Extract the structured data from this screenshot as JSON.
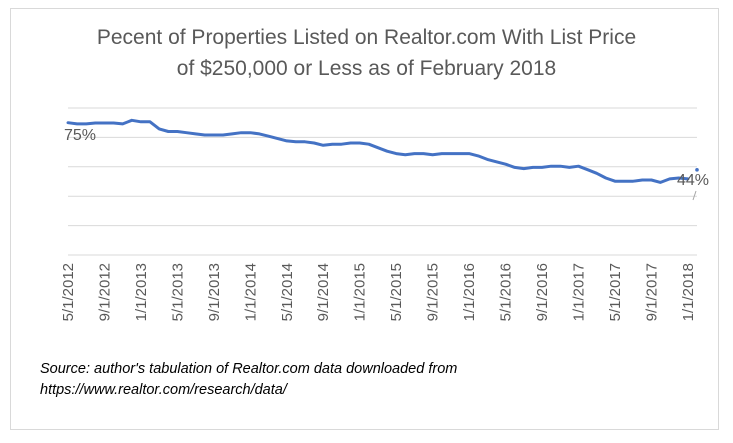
{
  "title_line1": "Pecent of Properties Listed on Realtor.com With List Price",
  "title_line2": "of $250,000 or Less as of February 2018",
  "source_line1": "Source: author's tabulation of Realtor.com data downloaded from",
  "source_line2": "https://www.realtor.com/research/data/",
  "colors": {
    "line": "#4472c4",
    "grid": "#d9d9d9",
    "text": "#595959"
  },
  "chart_data": {
    "type": "line",
    "title": "Pecent of Properties Listed on Realtor.com With List Price of $250,000 or Less as of February 2018",
    "xlabel": "",
    "ylabel": "",
    "grid": true,
    "ylim": [
      30,
      80
    ],
    "x_tick_labels": [
      "5/1/2012",
      "9/1/2012",
      "1/1/2013",
      "5/1/2013",
      "9/1/2013",
      "1/1/2014",
      "5/1/2014",
      "9/1/2014",
      "1/1/2015",
      "5/1/2015",
      "9/1/2015",
      "1/1/2016",
      "5/1/2016",
      "9/1/2016",
      "1/1/2017",
      "5/1/2017",
      "9/1/2017",
      "1/1/2018"
    ],
    "annotations": [
      {
        "index": 0,
        "label": "75%"
      },
      {
        "index": 69,
        "label": "44%"
      }
    ],
    "series": [
      {
        "x": [
          "5/1/2012",
          "6/1/2012",
          "7/1/2012",
          "8/1/2012",
          "9/1/2012",
          "10/1/2012",
          "11/1/2012",
          "12/1/2012",
          "1/1/2013",
          "2/1/2013",
          "3/1/2013",
          "4/1/2013",
          "5/1/2013",
          "6/1/2013",
          "7/1/2013",
          "8/1/2013",
          "9/1/2013",
          "10/1/2013",
          "11/1/2013",
          "12/1/2013",
          "1/1/2014",
          "2/1/2014",
          "3/1/2014",
          "4/1/2014",
          "5/1/2014",
          "6/1/2014",
          "7/1/2014",
          "8/1/2014",
          "9/1/2014",
          "10/1/2014",
          "11/1/2014",
          "12/1/2014",
          "1/1/2015",
          "2/1/2015",
          "3/1/2015",
          "4/1/2015",
          "5/1/2015",
          "6/1/2015",
          "7/1/2015",
          "8/1/2015",
          "9/1/2015",
          "10/1/2015",
          "11/1/2015",
          "12/1/2015",
          "1/1/2016",
          "2/1/2016",
          "3/1/2016",
          "4/1/2016",
          "5/1/2016",
          "6/1/2016",
          "7/1/2016",
          "8/1/2016",
          "9/1/2016",
          "10/1/2016",
          "11/1/2016",
          "12/1/2016",
          "1/1/2017",
          "2/1/2017",
          "3/1/2017",
          "4/1/2017",
          "5/1/2017",
          "6/1/2017",
          "7/1/2017",
          "8/1/2017",
          "9/1/2017",
          "10/1/2017",
          "11/1/2017",
          "12/1/2017",
          "1/1/2018",
          "2/1/2018"
        ],
        "values": [
          75.0,
          74.6,
          74.6,
          74.9,
          74.9,
          74.9,
          74.6,
          75.8,
          75.3,
          75.3,
          72.9,
          72.0,
          72.0,
          71.6,
          71.2,
          70.8,
          70.8,
          70.8,
          71.2,
          71.6,
          71.6,
          71.2,
          70.4,
          69.6,
          68.8,
          68.5,
          68.5,
          68.1,
          67.3,
          67.7,
          67.7,
          68.1,
          68.1,
          67.7,
          66.5,
          65.3,
          64.5,
          64.1,
          64.5,
          64.5,
          64.1,
          64.5,
          64.5,
          64.5,
          64.5,
          63.7,
          62.5,
          61.7,
          60.9,
          59.8,
          59.4,
          59.8,
          59.8,
          60.2,
          60.2,
          59.8,
          60.2,
          59.0,
          57.8,
          56.2,
          55.1,
          55.1,
          55.1,
          55.5,
          55.5,
          54.7,
          55.9,
          56.2,
          55.9,
          44.0
        ]
      }
    ]
  }
}
